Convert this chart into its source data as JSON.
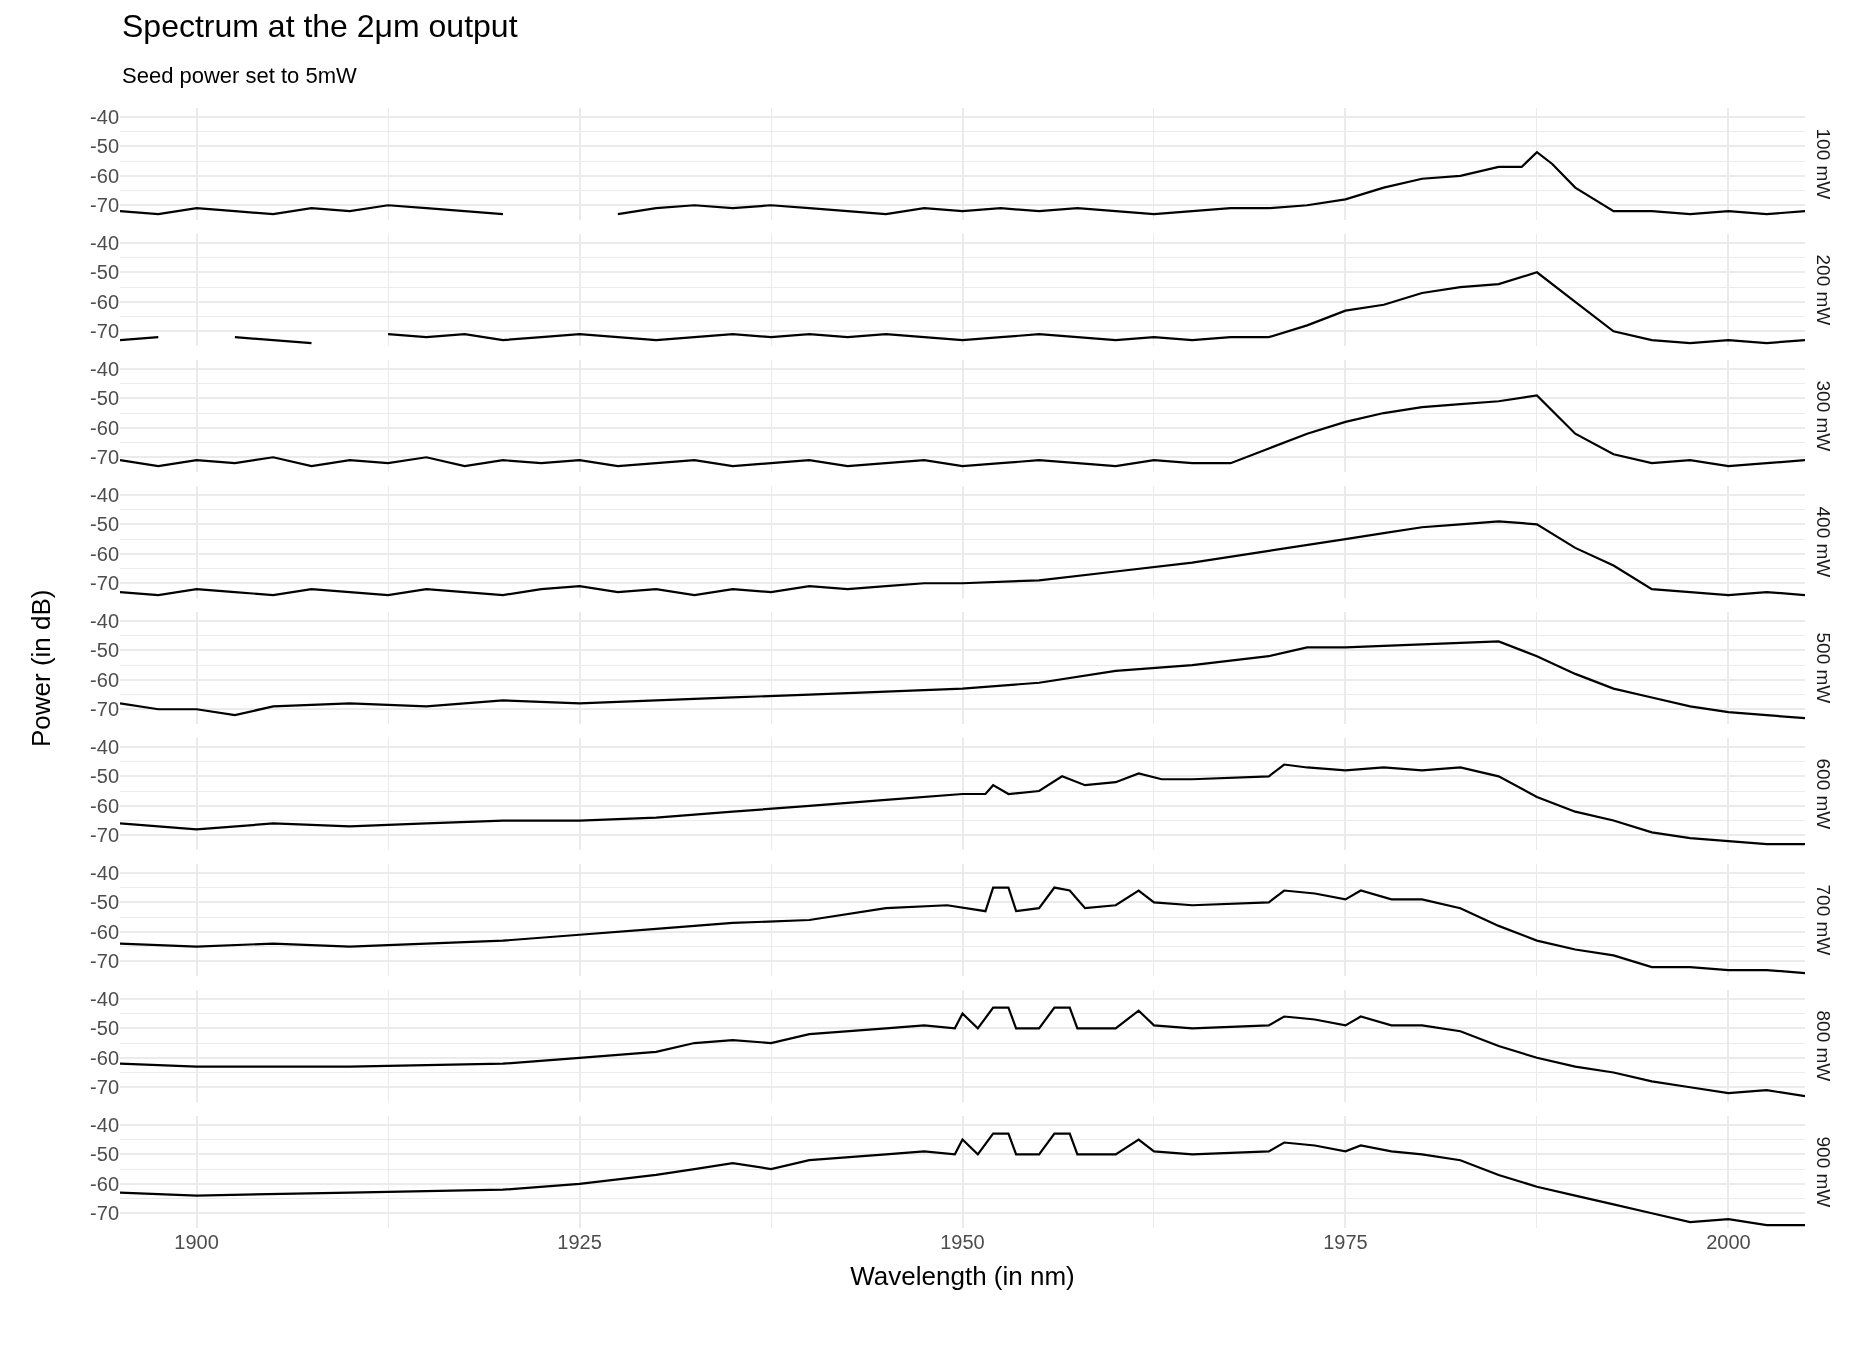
{
  "chart_data": [
    {
      "type": "line",
      "title": "Spectrum at the 2μm output",
      "subtitle": "Seed power set to 5mW",
      "y2label": "100 mW",
      "tick_labels": "y",
      "grid": true,
      "xlim": [
        1895,
        2005
      ],
      "ylim": [
        -75,
        -37
      ],
      "xticks": [
        1900,
        {
          "value": 1912.5,
          "label": null
        },
        1925,
        {
          "value": 1937.5,
          "label": null
        },
        1950,
        {
          "value": 1962.5,
          "label": null
        },
        1975,
        {
          "value": 1987.5,
          "label": null
        },
        2000
      ],
      "yticks": [
        -70,
        {
          "value": -65,
          "label": null
        },
        -60,
        {
          "value": -55,
          "label": null
        },
        -50,
        {
          "value": -45,
          "label": null
        },
        -40
      ],
      "series": [
        {
          "color": "#000000",
          "x": [
            1895,
            1897.5,
            1900,
            1902.5,
            1905,
            1907.5,
            1910,
            1912.5,
            1915,
            1917.5,
            1920,
            1922.5,
            1925,
            1927.5,
            1930,
            1932.5,
            1935,
            1937.5,
            1940,
            1942.5,
            1945,
            1947.5,
            1950,
            1952.5,
            1955,
            1957.5,
            1960,
            1962.5,
            1965,
            1967.5,
            1970,
            1972.5,
            1975,
            1977.5,
            1980,
            1982.5,
            1985,
            1986.5,
            1987.5,
            1988.5,
            1990,
            1992.5,
            1995,
            1997.5,
            2000,
            2002.5,
            2005
          ],
          "values": [
            -72,
            -73,
            -71,
            -72,
            -73,
            -71,
            -72,
            -70,
            -71,
            -72,
            -73,
            null,
            null,
            -73,
            -71,
            -70,
            -71,
            -70,
            -71,
            -72,
            -73,
            -71,
            -72,
            -71,
            -72,
            -71,
            -72,
            -73,
            -72,
            -71,
            -71,
            -70,
            -68,
            -64,
            -61,
            -60,
            -57,
            -57,
            -52,
            -56,
            -64,
            -72,
            -72,
            -73,
            -72,
            -73,
            -72
          ]
        }
      ]
    },
    {
      "type": "line",
      "y2label": "200 mW",
      "tick_labels": "y",
      "grid": true,
      "xlim": [
        1895,
        2005
      ],
      "ylim": [
        -75,
        -37
      ],
      "xticks": [
        1900,
        {
          "value": 1912.5,
          "label": null
        },
        1925,
        {
          "value": 1937.5,
          "label": null
        },
        1950,
        {
          "value": 1962.5,
          "label": null
        },
        1975,
        {
          "value": 1987.5,
          "label": null
        },
        2000
      ],
      "yticks": [
        -70,
        {
          "value": -65,
          "label": null
        },
        -60,
        {
          "value": -55,
          "label": null
        },
        -50,
        {
          "value": -45,
          "label": null
        },
        -40
      ],
      "series": [
        {
          "color": "#000000",
          "x": [
            1895,
            1897.5,
            1900,
            1902.5,
            1905,
            1907.5,
            1910,
            1912.5,
            1915,
            1917.5,
            1920,
            1922.5,
            1925,
            1927.5,
            1930,
            1932.5,
            1935,
            1937.5,
            1940,
            1942.5,
            1945,
            1947.5,
            1950,
            1952.5,
            1955,
            1957.5,
            1960,
            1962.5,
            1965,
            1967.5,
            1970,
            1972.5,
            1975,
            1977.5,
            1980,
            1982.5,
            1985,
            1987.5,
            1990,
            1992.5,
            1995,
            1997.5,
            2000,
            2002.5,
            2005
          ],
          "values": [
            -73,
            -72,
            null,
            -72,
            -73,
            -74,
            null,
            -71,
            -72,
            -71,
            -73,
            -72,
            -71,
            -72,
            -73,
            -72,
            -71,
            -72,
            -71,
            -72,
            -71,
            -72,
            -73,
            -72,
            -71,
            -72,
            -73,
            -72,
            -73,
            -72,
            -72,
            -68,
            -63,
            -61,
            -57,
            -55,
            -54,
            -50,
            -60,
            -70,
            -73,
            -74,
            -73,
            -74,
            -73
          ]
        }
      ]
    },
    {
      "type": "line",
      "y2label": "300 mW",
      "tick_labels": "y",
      "grid": true,
      "xlim": [
        1895,
        2005
      ],
      "ylim": [
        -75,
        -37
      ],
      "xticks": [
        1900,
        {
          "value": 1912.5,
          "label": null
        },
        1925,
        {
          "value": 1937.5,
          "label": null
        },
        1950,
        {
          "value": 1962.5,
          "label": null
        },
        1975,
        {
          "value": 1987.5,
          "label": null
        },
        2000
      ],
      "yticks": [
        -70,
        {
          "value": -65,
          "label": null
        },
        -60,
        {
          "value": -55,
          "label": null
        },
        -50,
        {
          "value": -45,
          "label": null
        },
        -40
      ],
      "series": [
        {
          "color": "#000000",
          "x": [
            1895,
            1897.5,
            1900,
            1902.5,
            1905,
            1907.5,
            1910,
            1912.5,
            1915,
            1917.5,
            1920,
            1922.5,
            1925,
            1927.5,
            1930,
            1932.5,
            1935,
            1937.5,
            1940,
            1942.5,
            1945,
            1947.5,
            1950,
            1952.5,
            1955,
            1957.5,
            1960,
            1962.5,
            1965,
            1967.5,
            1970,
            1972.5,
            1975,
            1977.5,
            1980,
            1982.5,
            1985,
            1987.5,
            1990,
            1992.5,
            1995,
            1997.5,
            2000,
            2002.5,
            2005
          ],
          "values": [
            -71,
            -73,
            -71,
            -72,
            -70,
            -73,
            -71,
            -72,
            -70,
            -73,
            -71,
            -72,
            -71,
            -73,
            -72,
            -71,
            -73,
            -72,
            -71,
            -73,
            -72,
            -71,
            -73,
            -72,
            -71,
            -72,
            -73,
            -71,
            -72,
            -72,
            -67,
            -62,
            -58,
            -55,
            -53,
            -52,
            -51,
            -49,
            -62,
            -69,
            -72,
            -71,
            -73,
            -72,
            -71
          ]
        }
      ]
    },
    {
      "type": "line",
      "y2label": "400 mW",
      "tick_labels": "y",
      "grid": true,
      "xlim": [
        1895,
        2005
      ],
      "ylim": [
        -75,
        -37
      ],
      "xticks": [
        1900,
        {
          "value": 1912.5,
          "label": null
        },
        1925,
        {
          "value": 1937.5,
          "label": null
        },
        1950,
        {
          "value": 1962.5,
          "label": null
        },
        1975,
        {
          "value": 1987.5,
          "label": null
        },
        2000
      ],
      "yticks": [
        -70,
        {
          "value": -65,
          "label": null
        },
        -60,
        {
          "value": -55,
          "label": null
        },
        -50,
        {
          "value": -45,
          "label": null
        },
        -40
      ],
      "series": [
        {
          "color": "#000000",
          "x": [
            1895,
            1897.5,
            1900,
            1902.5,
            1905,
            1907.5,
            1910,
            1912.5,
            1915,
            1917.5,
            1920,
            1922.5,
            1925,
            1927.5,
            1930,
            1932.5,
            1935,
            1937.5,
            1940,
            1942.5,
            1945,
            1947.5,
            1950,
            1955,
            1960,
            1965,
            1970,
            1975,
            1977.5,
            1980,
            1982.5,
            1985,
            1987.5,
            1990,
            1992.5,
            1995,
            1997.5,
            2000,
            2002.5,
            2005
          ],
          "values": [
            -73,
            -74,
            -72,
            -73,
            -74,
            -72,
            -73,
            -74,
            -72,
            -73,
            -74,
            -72,
            -71,
            -73,
            -72,
            -74,
            -72,
            -73,
            -71,
            -72,
            -71,
            -70,
            -70,
            -69,
            -66,
            -63,
            -59,
            -55,
            -53,
            -51,
            -50,
            -49,
            -50,
            -58,
            -64,
            -72,
            -73,
            -74,
            -73,
            -74
          ]
        }
      ]
    },
    {
      "type": "line",
      "y2label": "500 mW",
      "ylabel": "Power (in dB)",
      "tick_labels": "y",
      "grid": true,
      "xlim": [
        1895,
        2005
      ],
      "ylim": [
        -75,
        -37
      ],
      "xticks": [
        1900,
        {
          "value": 1912.5,
          "label": null
        },
        1925,
        {
          "value": 1937.5,
          "label": null
        },
        1950,
        {
          "value": 1962.5,
          "label": null
        },
        1975,
        {
          "value": 1987.5,
          "label": null
        },
        2000
      ],
      "yticks": [
        -70,
        {
          "value": -65,
          "label": null
        },
        -60,
        {
          "value": -55,
          "label": null
        },
        -50,
        {
          "value": -45,
          "label": null
        },
        -40
      ],
      "series": [
        {
          "color": "#000000",
          "x": [
            1895,
            1897.5,
            1900,
            1902.5,
            1905,
            1910,
            1915,
            1920,
            1925,
            1930,
            1935,
            1940,
            1945,
            1950,
            1955,
            1960,
            1965,
            1970,
            1972.5,
            1975,
            1980,
            1985,
            1987.5,
            1990,
            1992.5,
            1995,
            1997.5,
            2000,
            2002.5,
            2005
          ],
          "values": [
            -68,
            -70,
            -70,
            -72,
            -69,
            -68,
            -69,
            -67,
            -68,
            -67,
            -66,
            -65,
            -64,
            -63,
            -61,
            -57,
            -55,
            -52,
            -49,
            -49,
            -48,
            -47,
            -52,
            -58,
            -63,
            -66,
            -69,
            -71,
            -72,
            -73
          ]
        }
      ]
    },
    {
      "type": "line",
      "y2label": "600 mW",
      "tick_labels": "y",
      "grid": true,
      "xlim": [
        1895,
        2005
      ],
      "ylim": [
        -75,
        -37
      ],
      "xticks": [
        1900,
        {
          "value": 1912.5,
          "label": null
        },
        1925,
        {
          "value": 1937.5,
          "label": null
        },
        1950,
        {
          "value": 1962.5,
          "label": null
        },
        1975,
        {
          "value": 1987.5,
          "label": null
        },
        2000
      ],
      "yticks": [
        -70,
        {
          "value": -65,
          "label": null
        },
        -60,
        {
          "value": -55,
          "label": null
        },
        -50,
        {
          "value": -45,
          "label": null
        },
        -40
      ],
      "series": [
        {
          "color": "#000000",
          "x": [
            1895,
            1900,
            1905,
            1910,
            1915,
            1920,
            1925,
            1930,
            1935,
            1940,
            1945,
            1950,
            1951.5,
            1952,
            1953,
            1955,
            1956.5,
            1958,
            1960,
            1961.5,
            1963,
            1965,
            1970,
            1971,
            1972.5,
            1975,
            1977.5,
            1980,
            1982.5,
            1985,
            1987.5,
            1990,
            1992.5,
            1995,
            1997.5,
            2000,
            2002.5,
            2005
          ],
          "values": [
            -66,
            -68,
            -66,
            -67,
            -66,
            -65,
            -65,
            -64,
            -62,
            -60,
            -58,
            -56,
            -56,
            -53,
            -56,
            -55,
            -50,
            -53,
            -52,
            -49,
            -51,
            -51,
            -50,
            -46,
            -47,
            -48,
            -47,
            -48,
            -47,
            -50,
            -57,
            -62,
            -65,
            -69,
            -71,
            -72,
            -73,
            -73
          ]
        }
      ]
    },
    {
      "type": "line",
      "y2label": "700 mW",
      "tick_labels": "y",
      "grid": true,
      "xlim": [
        1895,
        2005
      ],
      "ylim": [
        -75,
        -37
      ],
      "xticks": [
        1900,
        {
          "value": 1912.5,
          "label": null
        },
        1925,
        {
          "value": 1937.5,
          "label": null
        },
        1950,
        {
          "value": 1962.5,
          "label": null
        },
        1975,
        {
          "value": 1987.5,
          "label": null
        },
        2000
      ],
      "yticks": [
        -70,
        {
          "value": -65,
          "label": null
        },
        -60,
        {
          "value": -55,
          "label": null
        },
        -50,
        {
          "value": -45,
          "label": null
        },
        -40
      ],
      "series": [
        {
          "color": "#000000",
          "x": [
            1895,
            1900,
            1905,
            1910,
            1915,
            1920,
            1925,
            1930,
            1935,
            1940,
            1945,
            1949,
            1951.5,
            1952,
            1953,
            1953.5,
            1955,
            1956,
            1957,
            1958,
            1960,
            1961.5,
            1962.5,
            1965,
            1970,
            1971,
            1973,
            1975,
            1976,
            1978,
            1980,
            1982.5,
            1985,
            1987.5,
            1990,
            1992.5,
            1995,
            1997.5,
            2000,
            2002.5,
            2005
          ],
          "values": [
            -64,
            -65,
            -64,
            -65,
            -64,
            -63,
            -61,
            -59,
            -57,
            -56,
            -52,
            -51,
            -53,
            -45,
            -45,
            -53,
            -52,
            -45,
            -46,
            -52,
            -51,
            -46,
            -50,
            -51,
            -50,
            -46,
            -47,
            -49,
            -46,
            -49,
            -49,
            -52,
            -58,
            -63,
            -66,
            -68,
            -72,
            -72,
            -73,
            -73,
            -74
          ]
        }
      ]
    },
    {
      "type": "line",
      "y2label": "800 mW",
      "tick_labels": "y",
      "grid": true,
      "xlim": [
        1895,
        2005
      ],
      "ylim": [
        -75,
        -37
      ],
      "xticks": [
        1900,
        {
          "value": 1912.5,
          "label": null
        },
        1925,
        {
          "value": 1937.5,
          "label": null
        },
        1950,
        {
          "value": 1962.5,
          "label": null
        },
        1975,
        {
          "value": 1987.5,
          "label": null
        },
        2000
      ],
      "yticks": [
        -70,
        {
          "value": -65,
          "label": null
        },
        -60,
        {
          "value": -55,
          "label": null
        },
        -50,
        {
          "value": -45,
          "label": null
        },
        -40
      ],
      "series": [
        {
          "color": "#000000",
          "x": [
            1895,
            1900,
            1910,
            1920,
            1925,
            1930,
            1932.5,
            1935,
            1937.5,
            1940,
            1945,
            1947.5,
            1949.5,
            1950,
            1951,
            1952,
            1953,
            1953.5,
            1955,
            1956,
            1957,
            1957.5,
            1960,
            1961.5,
            1962.5,
            1965,
            1970,
            1971,
            1973,
            1975,
            1976,
            1978,
            1980,
            1982.5,
            1985,
            1987.5,
            1990,
            1992.5,
            1995,
            1997.5,
            2000,
            2002.5,
            2005
          ],
          "values": [
            -62,
            -63,
            -63,
            -62,
            -60,
            -58,
            -55,
            -54,
            -55,
            -52,
            -50,
            -49,
            -50,
            -45,
            -50,
            -43,
            -43,
            -50,
            -50,
            -43,
            -43,
            -50,
            -50,
            -44,
            -49,
            -50,
            -49,
            -46,
            -47,
            -49,
            -46,
            -49,
            -49,
            -51,
            -56,
            -60,
            -63,
            -65,
            -68,
            -70,
            -72,
            -71,
            -73
          ]
        }
      ]
    },
    {
      "type": "line",
      "y2label": "900 mW",
      "xlabel": "Wavelength (in nm)",
      "grid": true,
      "xlim": [
        1895,
        2005
      ],
      "ylim": [
        -75,
        -37
      ],
      "xticks": [
        1900,
        {
          "value": 1912.5,
          "label": null
        },
        1925,
        {
          "value": 1937.5,
          "label": null
        },
        1950,
        {
          "value": 1962.5,
          "label": null
        },
        1975,
        {
          "value": 1987.5,
          "label": null
        },
        2000
      ],
      "yticks": [
        -70,
        {
          "value": -65,
          "label": null
        },
        -60,
        {
          "value": -55,
          "label": null
        },
        -50,
        {
          "value": -45,
          "label": null
        },
        -40
      ],
      "series": [
        {
          "color": "#000000",
          "x": [
            1895,
            1900,
            1910,
            1920,
            1925,
            1930,
            1932.5,
            1935,
            1937.5,
            1940,
            1945,
            1947.5,
            1949.5,
            1950,
            1951,
            1952,
            1953,
            1953.5,
            1955,
            1956,
            1957,
            1957.5,
            1960,
            1961.5,
            1962.5,
            1965,
            1970,
            1971,
            1973,
            1975,
            1976,
            1978,
            1980,
            1982.5,
            1985,
            1987.5,
            1990,
            1992.5,
            1995,
            1997.5,
            2000,
            2002.5,
            2005
          ],
          "values": [
            -63,
            -64,
            -63,
            -62,
            -60,
            -57,
            -55,
            -53,
            -55,
            -52,
            -50,
            -49,
            -50,
            -45,
            -50,
            -43,
            -43,
            -50,
            -50,
            -43,
            -43,
            -50,
            -50,
            -45,
            -49,
            -50,
            -49,
            -46,
            -47,
            -49,
            -47,
            -49,
            -50,
            -52,
            -57,
            -61,
            -64,
            -67,
            -70,
            -73,
            -72,
            -74,
            -74
          ]
        }
      ]
    }
  ]
}
